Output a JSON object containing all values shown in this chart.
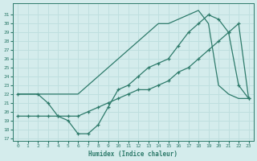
{
  "xlabel": "Humidex (Indice chaleur)",
  "bg_color": "#d4ecec",
  "line_color": "#2d7a6a",
  "grid_color": "#bfdfdf",
  "ylim": [
    17,
    32
  ],
  "xlim": [
    -0.5,
    23.5
  ],
  "yticks": [
    17,
    18,
    19,
    20,
    21,
    22,
    23,
    24,
    25,
    26,
    27,
    28,
    29,
    30,
    31
  ],
  "xticks": [
    0,
    1,
    2,
    3,
    4,
    5,
    6,
    7,
    8,
    9,
    10,
    11,
    12,
    13,
    14,
    15,
    16,
    17,
    18,
    19,
    20,
    21,
    22,
    23
  ],
  "curve_top_x": [
    0,
    1,
    2,
    3,
    4,
    5,
    6,
    7,
    8,
    9,
    10,
    11,
    12,
    13,
    14,
    15,
    16,
    17,
    18,
    19,
    20,
    21,
    22,
    23
  ],
  "curve_top_y": [
    22,
    22,
    22,
    22,
    22,
    22,
    22,
    23,
    24,
    25,
    26,
    27,
    28,
    29,
    30,
    30,
    30.5,
    31,
    31.5,
    30,
    23,
    22,
    21.5,
    21.5
  ],
  "curve_mid_x": [
    0,
    1,
    2,
    3,
    4,
    5,
    6,
    7,
    8,
    9,
    10,
    11,
    12,
    13,
    14,
    15,
    16,
    17,
    18,
    19,
    20,
    21,
    22,
    23
  ],
  "curve_mid_y": [
    19.5,
    19.5,
    19.5,
    19.5,
    19.5,
    19.5,
    19.5,
    20,
    20.5,
    21,
    21.5,
    22,
    22.5,
    22.5,
    23,
    23.5,
    24.5,
    25,
    26,
    27,
    28,
    29,
    30,
    21.5
  ],
  "curve_low_x": [
    0,
    2,
    3,
    4,
    5,
    6,
    7,
    8,
    9,
    10,
    11,
    12,
    13,
    14,
    15,
    16,
    17,
    18,
    19,
    20,
    21,
    22,
    23
  ],
  "curve_low_y": [
    22,
    22,
    21,
    19.5,
    19,
    17.5,
    17.5,
    18.5,
    20.5,
    22.5,
    23,
    24,
    25,
    25.5,
    26,
    27.5,
    29,
    30,
    31,
    30.5,
    29,
    23,
    21.5
  ]
}
